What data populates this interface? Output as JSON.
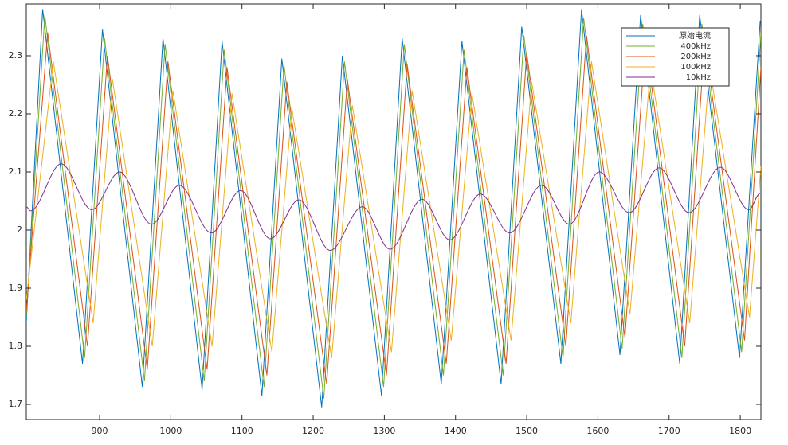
{
  "chart_data": {
    "type": "line",
    "xlim": [
      797,
      1829
    ],
    "ylim": [
      1.674,
      2.389
    ],
    "xticks": [
      900,
      1000,
      1100,
      1200,
      1300,
      1400,
      1500,
      1600,
      1700,
      1800
    ],
    "yticks": [
      1.7,
      1.8,
      1.9,
      2,
      2.1,
      2.2,
      2.3
    ],
    "grid": false,
    "legend": "top-right",
    "series": [
      {
        "name": "原始电流",
        "color": "#0072bd",
        "smooth": false,
        "x": [
          797,
          820,
          876,
          904,
          960,
          989,
          1044,
          1072,
          1128,
          1156,
          1212,
          1241,
          1296,
          1325,
          1380,
          1409,
          1464,
          1493,
          1548,
          1577,
          1631,
          1660,
          1715,
          1743,
          1799,
          1828
        ],
        "values": [
          1.84,
          2.38,
          1.77,
          2.345,
          1.73,
          2.33,
          1.725,
          2.325,
          1.715,
          2.295,
          1.695,
          2.3,
          1.715,
          2.33,
          1.735,
          2.325,
          1.735,
          2.35,
          1.77,
          2.38,
          1.785,
          2.37,
          1.77,
          2.37,
          1.78,
          2.36
        ]
      },
      {
        "name": "400kHz",
        "color": "#77ac30",
        "smooth": false,
        "x": [
          797,
          823,
          879,
          907,
          963,
          992,
          1047,
          1075,
          1131,
          1159,
          1215,
          1244,
          1299,
          1328,
          1383,
          1412,
          1467,
          1496,
          1551,
          1580,
          1634,
          1663,
          1718,
          1746,
          1802,
          1829
        ],
        "values": [
          1.85,
          2.37,
          1.78,
          2.33,
          1.74,
          2.32,
          1.74,
          2.31,
          1.73,
          2.285,
          1.71,
          2.29,
          1.73,
          2.32,
          1.75,
          2.31,
          1.75,
          2.335,
          1.78,
          2.365,
          1.795,
          2.355,
          1.78,
          2.355,
          1.79,
          2.34
        ]
      },
      {
        "name": "200kHz",
        "color": "#d95319",
        "smooth": false,
        "x": [
          797,
          827,
          883,
          911,
          967,
          996,
          1051,
          1079,
          1135,
          1163,
          1219,
          1248,
          1303,
          1332,
          1387,
          1416,
          1471,
          1500,
          1555,
          1584,
          1638,
          1667,
          1722,
          1750,
          1806,
          1829
        ],
        "values": [
          1.86,
          2.34,
          1.8,
          2.3,
          1.76,
          2.29,
          1.76,
          2.28,
          1.75,
          2.255,
          1.735,
          2.26,
          1.75,
          2.285,
          1.77,
          2.28,
          1.77,
          2.305,
          1.8,
          2.335,
          1.815,
          2.33,
          1.8,
          2.33,
          1.81,
          2.28
        ]
      },
      {
        "name": "100kHz",
        "color": "#edb120",
        "smooth": false,
        "x": [
          797,
          835,
          891,
          918,
          974,
          1003,
          1058,
          1086,
          1142,
          1170,
          1226,
          1255,
          1310,
          1339,
          1394,
          1423,
          1478,
          1507,
          1562,
          1591,
          1645,
          1674,
          1729,
          1757,
          1813,
          1829
        ],
        "values": [
          1.88,
          2.29,
          1.84,
          2.26,
          1.8,
          2.24,
          1.8,
          2.235,
          1.79,
          2.21,
          1.78,
          2.215,
          1.79,
          2.24,
          1.81,
          2.235,
          1.81,
          2.255,
          1.84,
          2.29,
          1.855,
          2.28,
          1.84,
          2.28,
          1.85,
          2.11
        ]
      },
      {
        "name": "10kHz",
        "color": "#7e2f8e",
        "smooth": true,
        "x": [
          797,
          803,
          846,
          889,
          928,
          973,
          1012,
          1057,
          1098,
          1140,
          1180,
          1224,
          1269,
          1308,
          1353,
          1392,
          1435,
          1476,
          1521,
          1560,
          1602,
          1644,
          1686,
          1728,
          1772,
          1812,
          1828
        ],
        "values": [
          2.04,
          2.033,
          2.114,
          2.035,
          2.1,
          2.01,
          2.077,
          1.995,
          2.068,
          1.985,
          2.052,
          1.965,
          2.04,
          1.967,
          2.053,
          1.983,
          2.062,
          1.995,
          2.077,
          2.01,
          2.1,
          2.03,
          2.107,
          2.03,
          2.108,
          2.035,
          2.063
        ]
      }
    ]
  }
}
